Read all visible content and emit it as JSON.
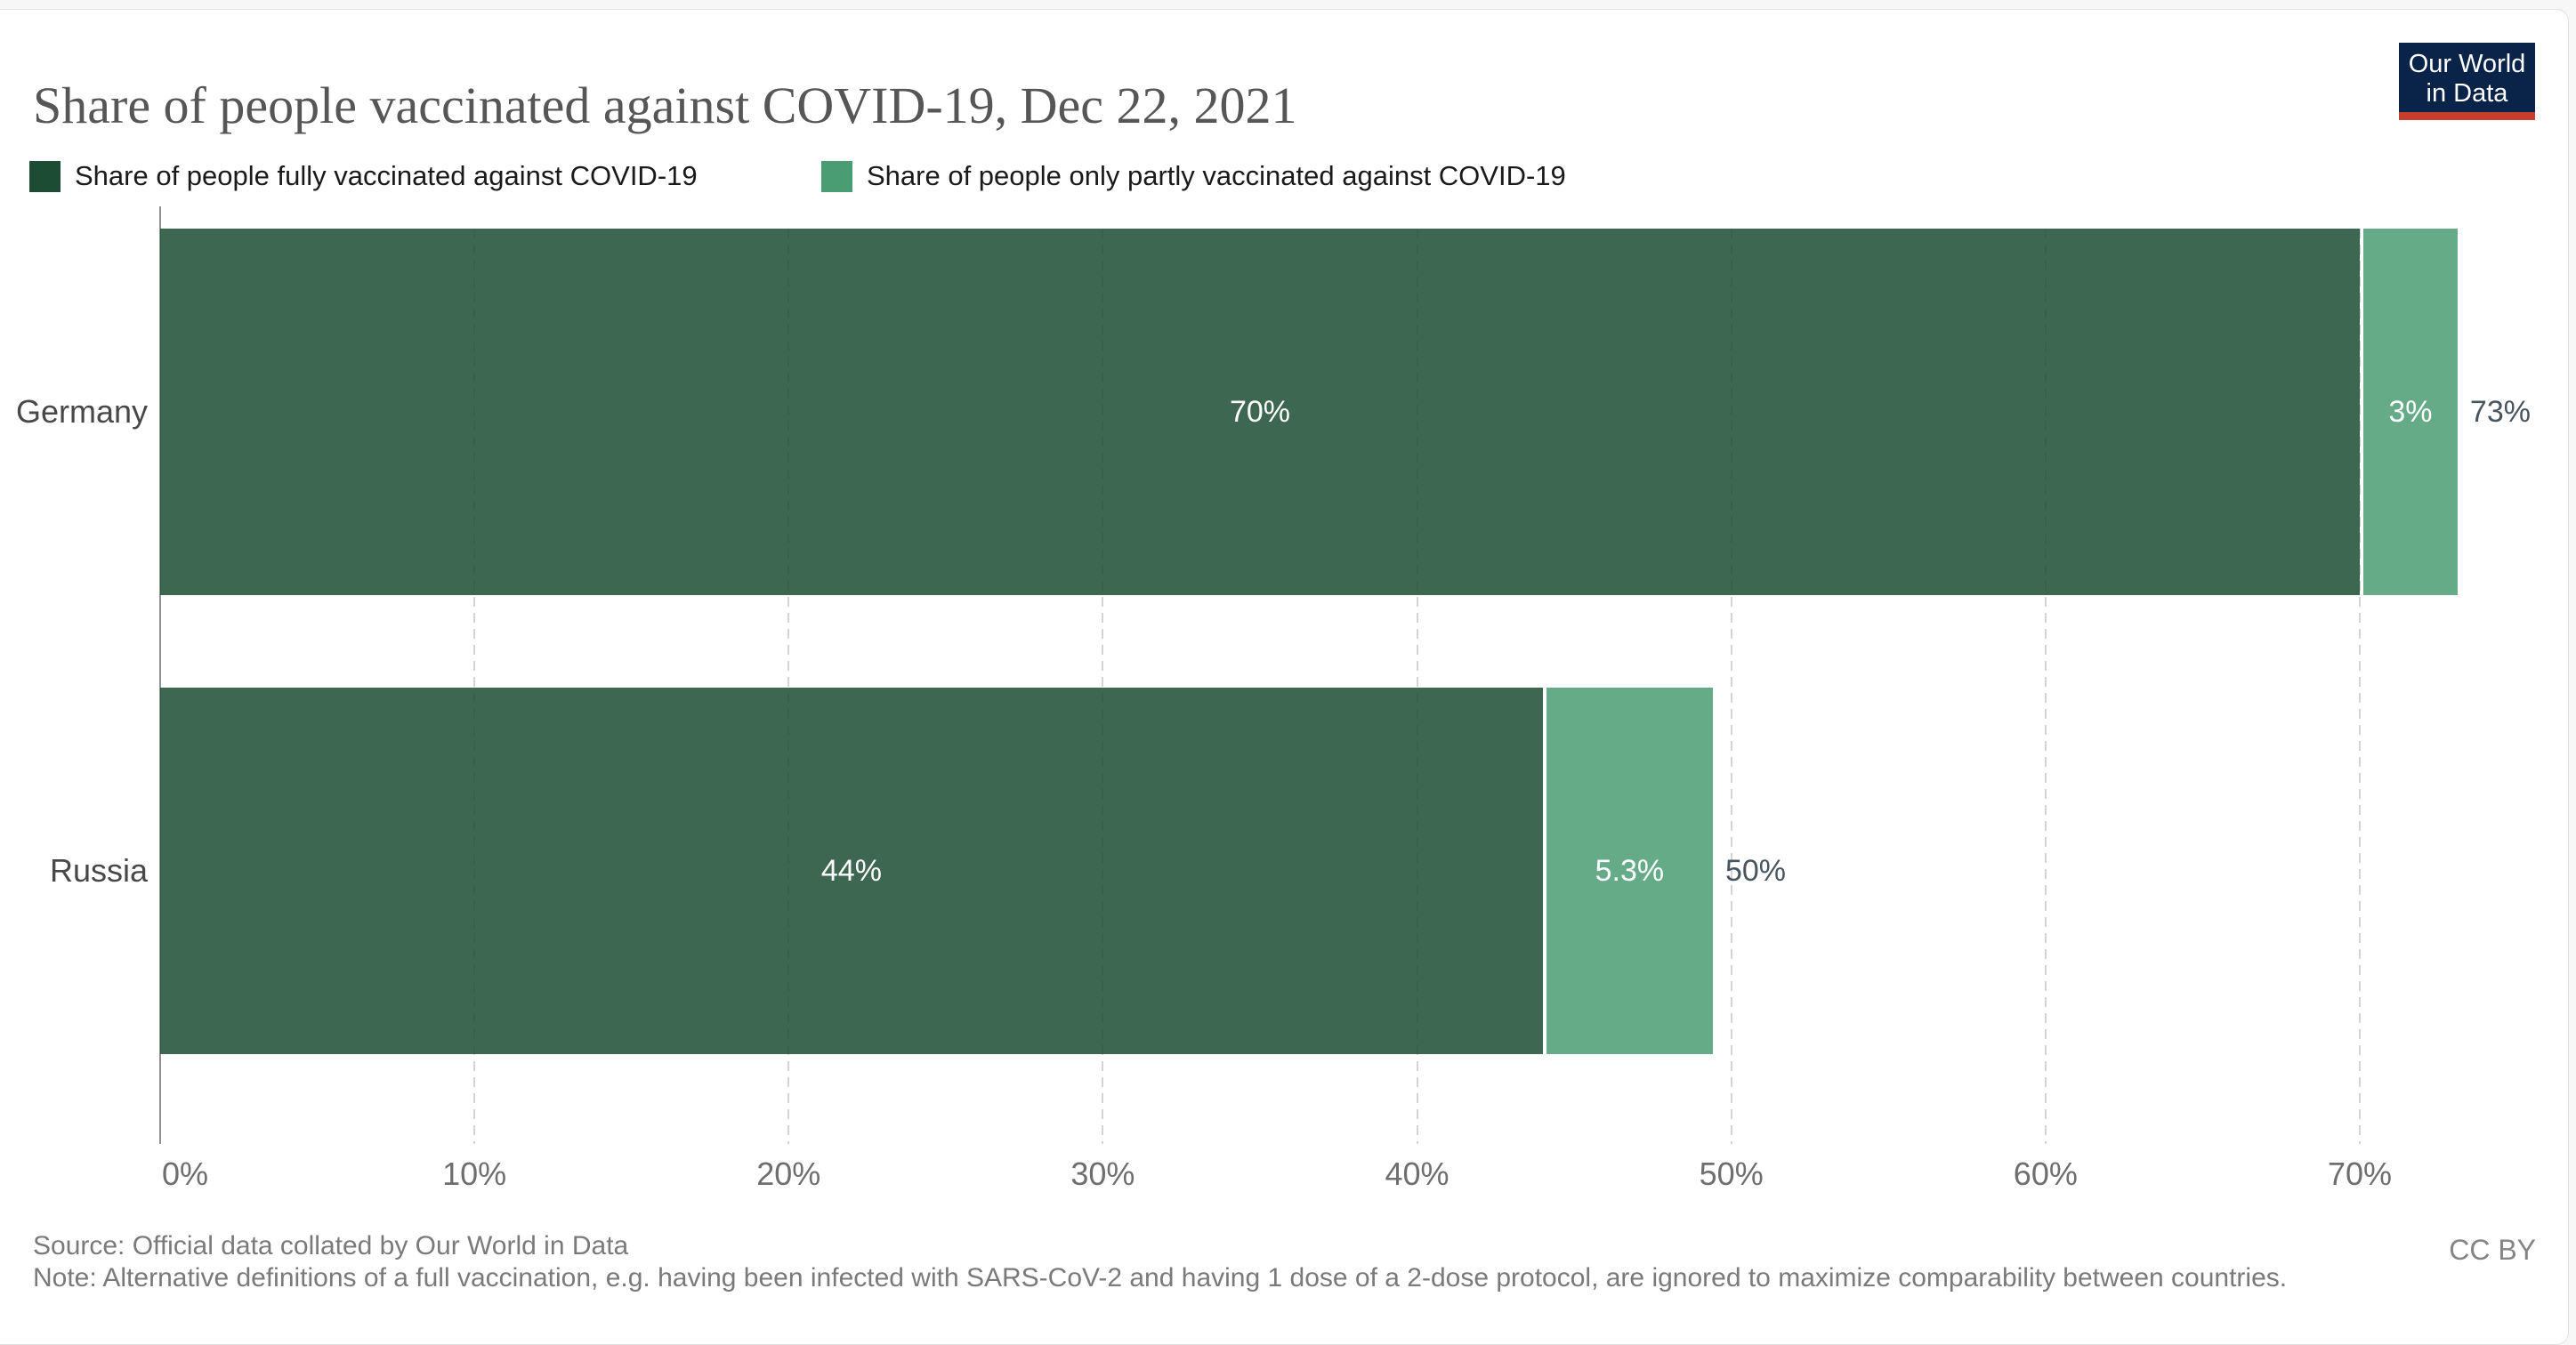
{
  "header": {
    "title": "Share of people vaccinated against COVID-19, Dec 22, 2021"
  },
  "logo": {
    "line1": "Our World",
    "line2": "in Data",
    "bg_color": "#0a2449",
    "accent_color": "#c73e2f"
  },
  "legend": {
    "items": [
      {
        "label": "Share of people fully vaccinated against COVID-19",
        "color": "#1c4c33"
      },
      {
        "label": "Share of people only partly vaccinated against COVID-19",
        "color": "#4a9c72"
      }
    ]
  },
  "chart_data": {
    "type": "bar",
    "orientation": "horizontal",
    "stacked": true,
    "title": "Share of people vaccinated against COVID-19, Dec 22, 2021",
    "categories": [
      "Germany",
      "Russia"
    ],
    "series": [
      {
        "name": "Share of people fully vaccinated against COVID-19",
        "color": "#1c4c33",
        "values": [
          70,
          44
        ],
        "labels": [
          "70%",
          "44%"
        ]
      },
      {
        "name": "Share of people only partly vaccinated against COVID-19",
        "color": "#4a9c72",
        "values": [
          3,
          5.3
        ],
        "labels": [
          "3%",
          "5.3%"
        ]
      }
    ],
    "totals": [
      "73%",
      "50%"
    ],
    "x_tick_values": [
      0,
      10,
      20,
      30,
      40,
      50,
      60,
      70
    ],
    "x_tick_labels": [
      "0%",
      "10%",
      "20%",
      "30%",
      "40%",
      "50%",
      "60%",
      "70%"
    ],
    "xlim": [
      0,
      75.9
    ],
    "grid": true,
    "gridline_style": "dashed",
    "legend_position": "top",
    "bar_fill_opacity": 0.85
  },
  "colors": {
    "title": "#565656",
    "entity_label": "#484848",
    "tick_label": "#6e6e6e",
    "total_label": "#49555e",
    "grid": "#d4d4d4",
    "axis": "#909090",
    "page_bg": "#f7f7f7",
    "card_border": "#e0e0e0"
  },
  "footer": {
    "source": "Source: Official data collated by Our World in Data",
    "note": "Note: Alternative definitions of a full vaccination, e.g. having been infected with SARS-CoV-2 and having 1 dose of a 2-dose protocol, are ignored to maximize comparability between countries.",
    "license": "CC BY"
  }
}
